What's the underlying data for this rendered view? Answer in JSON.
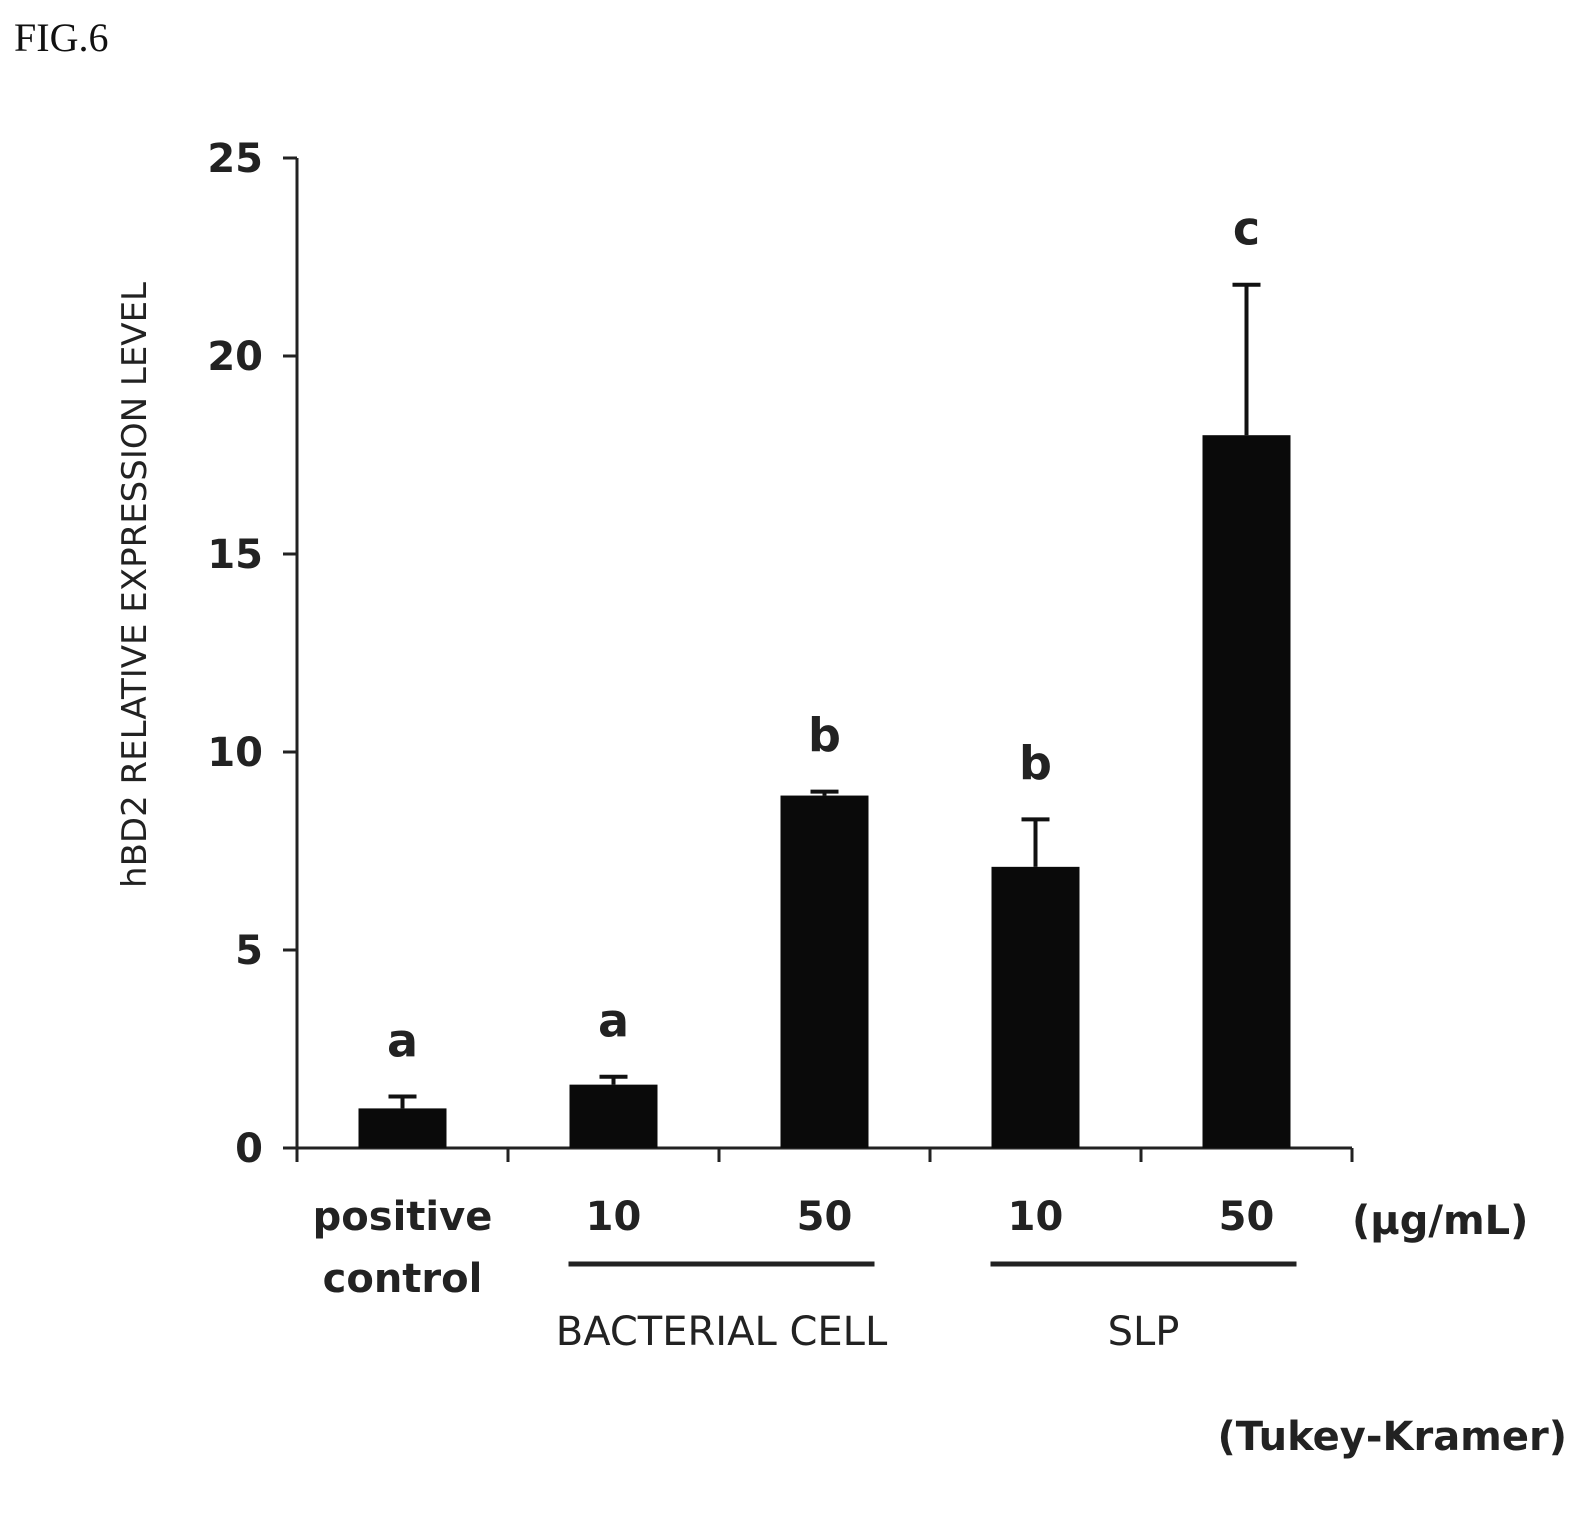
{
  "figure_label": "FIG.6",
  "chart_data": {
    "type": "bar",
    "categories": [
      "positive control",
      "10",
      "50",
      "10",
      "50"
    ],
    "category_lines": [
      [
        "positive",
        "control"
      ],
      [
        "10"
      ],
      [
        "50"
      ],
      [
        "10"
      ],
      [
        "50"
      ]
    ],
    "values": [
      1.0,
      1.6,
      8.9,
      7.1,
      18.0
    ],
    "error_upper": [
      1.3,
      1.8,
      9.0,
      8.3,
      21.8
    ],
    "significance_letters": [
      "a",
      "a",
      "b",
      "b",
      "c"
    ],
    "groups": [
      {
        "label": "BACTERIAL CELL",
        "category_indices": [
          1,
          2
        ]
      },
      {
        "label": "SLP",
        "category_indices": [
          3,
          4
        ]
      }
    ],
    "unit_label": "(μg/mL)",
    "footnote": "(Tukey-Kramer)",
    "title": "",
    "xlabel": "",
    "ylabel": "hBD2 RELATIVE EXPRESSION LEVEL",
    "ylim": [
      0,
      25
    ],
    "yticks": [
      0,
      5,
      10,
      15,
      20,
      25
    ],
    "grid": false,
    "bar_color": "#0a0a0a"
  }
}
